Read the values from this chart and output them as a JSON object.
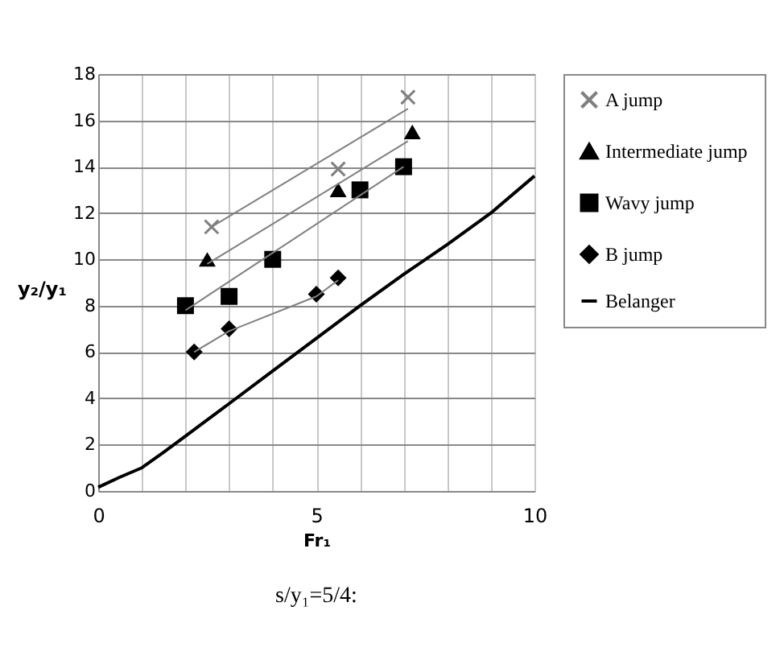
{
  "chart_data": {
    "type": "scatter",
    "xlabel": "Fr₁",
    "ylabel": "y₂/y₁",
    "xlim": [
      0,
      10
    ],
    "xticks": [
      0,
      {
        "value": 1,
        "label": null
      },
      {
        "value": 2,
        "label": null
      },
      {
        "value": 3,
        "label": null
      },
      {
        "value": 4,
        "label": null
      },
      5,
      {
        "value": 6,
        "label": null
      },
      {
        "value": 7,
        "label": null
      },
      {
        "value": 8,
        "label": null
      },
      {
        "value": 9,
        "label": null
      },
      10
    ],
    "ylim": [
      0,
      18
    ],
    "yticks": [
      0,
      2,
      4,
      6,
      8,
      10,
      12,
      14,
      16,
      18
    ],
    "grid": true,
    "legend": "right",
    "annotations": [
      "s/y₁=5/4:"
    ],
    "series": [
      {
        "name": "A jump",
        "marker": "cross",
        "color": "#808080",
        "x": [
          2.6,
          5.5,
          7.1
        ],
        "values": [
          11.4,
          13.9,
          17.0
        ]
      },
      {
        "name": "Intermediate jump",
        "marker": "triangle",
        "color": "#000000",
        "x": [
          2.5,
          5.5,
          7.2
        ],
        "values": [
          10.0,
          13.0,
          15.5
        ]
      },
      {
        "name": "Wavy jump",
        "marker": "square",
        "color": "#000000",
        "x": [
          2,
          3,
          4,
          6,
          7
        ],
        "values": [
          8.0,
          8.4,
          10.0,
          13.0,
          14.0
        ]
      },
      {
        "name": "B jump",
        "marker": "diamond",
        "color": "#000000",
        "x": [
          2.2,
          3,
          5,
          5.5
        ],
        "values": [
          6.0,
          7.0,
          8.5,
          9.2
        ]
      },
      {
        "name": "Belanger",
        "type": "line",
        "color": "#000000",
        "x": [
          0,
          0.5,
          1,
          1.5,
          2,
          3,
          4,
          5,
          6,
          7,
          8,
          9,
          10
        ],
        "values": [
          0.16,
          0.6,
          1.0,
          1.67,
          2.37,
          3.77,
          5.18,
          6.59,
          8.0,
          9.35,
          10.64,
          12.0,
          13.6
        ]
      },
      {
        "type": "line",
        "color": "#808080",
        "x": [
          2.6,
          7.1
        ],
        "values": [
          11.4,
          16.5
        ]
      },
      {
        "type": "line",
        "color": "#808080",
        "x": [
          2.5,
          7.1
        ],
        "values": [
          9.8,
          15.1
        ]
      },
      {
        "type": "line",
        "color": "#808080",
        "x": [
          2,
          7
        ],
        "values": [
          7.8,
          14.0
        ]
      },
      {
        "type": "line",
        "color": "#808080",
        "x": [
          2.2,
          3,
          5,
          5.5
        ],
        "values": [
          6.0,
          6.9,
          8.4,
          9.1
        ]
      }
    ]
  }
}
